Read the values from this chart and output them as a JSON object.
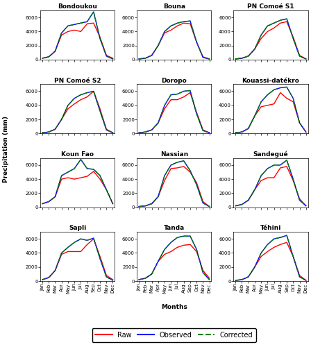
{
  "months": [
    "Jan",
    "Feb",
    "Mar",
    "Apr",
    "May",
    "Jun",
    "Jul",
    "Aug",
    "Sep",
    "Oct",
    "Nov",
    "Dec"
  ],
  "subplots": [
    {
      "title": "Bondoukou",
      "raw": [
        200,
        400,
        1200,
        3500,
        4000,
        4200,
        4000,
        5100,
        5200,
        3200,
        600,
        200
      ],
      "observed": [
        200,
        400,
        1200,
        3800,
        4800,
        5000,
        5200,
        5400,
        6800,
        3000,
        500,
        100
      ],
      "corrected": [
        200,
        400,
        1200,
        3800,
        4800,
        5000,
        5200,
        5400,
        6800,
        3000,
        500,
        100
      ]
    },
    {
      "title": "Bouna",
      "raw": [
        100,
        200,
        600,
        2000,
        3800,
        4200,
        4800,
        5200,
        5100,
        2500,
        400,
        100
      ],
      "observed": [
        100,
        200,
        600,
        2000,
        4000,
        4800,
        5200,
        5400,
        5500,
        2500,
        300,
        100
      ],
      "corrected": [
        100,
        200,
        600,
        2000,
        4000,
        4800,
        5200,
        5400,
        5500,
        2500,
        300,
        100
      ]
    },
    {
      "title": "PN Comoé S1",
      "raw": [
        100,
        200,
        500,
        1500,
        3000,
        4000,
        4500,
        5200,
        5400,
        3200,
        600,
        100
      ],
      "observed": [
        100,
        200,
        500,
        1500,
        3500,
        4800,
        5200,
        5600,
        5800,
        3000,
        500,
        100
      ],
      "corrected": [
        100,
        200,
        500,
        1500,
        3500,
        4800,
        5200,
        5600,
        5800,
        3000,
        500,
        100
      ]
    },
    {
      "title": "PN Comoé S2",
      "raw": [
        100,
        200,
        600,
        2000,
        3500,
        4200,
        4800,
        5200,
        6000,
        3500,
        600,
        100
      ],
      "observed": [
        100,
        200,
        600,
        2000,
        4000,
        5000,
        5500,
        5800,
        6000,
        3200,
        500,
        100
      ],
      "corrected": [
        100,
        200,
        600,
        2000,
        4000,
        5000,
        5500,
        5800,
        6000,
        3200,
        500,
        100
      ]
    },
    {
      "title": "Doropo",
      "raw": [
        100,
        200,
        500,
        1500,
        3500,
        4800,
        4800,
        5200,
        5800,
        3000,
        500,
        100
      ],
      "observed": [
        100,
        200,
        500,
        1500,
        4000,
        5500,
        5600,
        6000,
        6100,
        2800,
        400,
        100
      ],
      "corrected": [
        100,
        200,
        500,
        1500,
        4000,
        5500,
        5600,
        6000,
        6100,
        2800,
        400,
        100
      ]
    },
    {
      "title": "Kouassi-datékro",
      "raw": [
        100,
        200,
        700,
        2500,
        3800,
        4000,
        4200,
        5800,
        5000,
        4500,
        1500,
        200
      ],
      "observed": [
        100,
        200,
        700,
        2500,
        4500,
        5500,
        6200,
        6500,
        6600,
        5000,
        1500,
        200
      ],
      "corrected": [
        100,
        200,
        700,
        2500,
        4500,
        5500,
        6200,
        6500,
        6600,
        5000,
        1500,
        200
      ]
    },
    {
      "title": "Koun Fao",
      "raw": [
        500,
        800,
        1500,
        4000,
        4200,
        4000,
        4200,
        4400,
        5100,
        4000,
        2500,
        500
      ],
      "observed": [
        500,
        800,
        1500,
        4500,
        5000,
        5500,
        6800,
        5500,
        5400,
        4500,
        2500,
        500
      ],
      "corrected": [
        500,
        800,
        1500,
        4500,
        5000,
        5500,
        6800,
        5500,
        5400,
        4500,
        2500,
        500
      ]
    },
    {
      "title": "Nassian",
      "raw": [
        100,
        200,
        500,
        1500,
        3800,
        5500,
        5600,
        5800,
        5000,
        3500,
        800,
        100
      ],
      "observed": [
        100,
        200,
        500,
        1500,
        4500,
        6000,
        6400,
        6600,
        5200,
        3200,
        600,
        100
      ],
      "corrected": [
        100,
        200,
        500,
        1500,
        4500,
        6000,
        6400,
        6600,
        5200,
        3200,
        600,
        100
      ]
    },
    {
      "title": "Sandegué",
      "raw": [
        200,
        400,
        1000,
        2500,
        3800,
        4200,
        4200,
        5600,
        5800,
        3800,
        1200,
        200
      ],
      "observed": [
        200,
        400,
        1000,
        2500,
        4500,
        5500,
        6000,
        6000,
        6700,
        4000,
        1000,
        200
      ],
      "corrected": [
        200,
        400,
        1000,
        2500,
        4500,
        5500,
        6000,
        6000,
        6700,
        4000,
        1000,
        200
      ]
    },
    {
      "title": "Sapli",
      "raw": [
        200,
        500,
        1500,
        3800,
        4200,
        4200,
        4200,
        5200,
        6000,
        3500,
        800,
        200
      ],
      "observed": [
        200,
        500,
        1500,
        4000,
        4800,
        5500,
        6000,
        5800,
        6100,
        3200,
        600,
        100
      ],
      "corrected": [
        200,
        500,
        1500,
        4000,
        4800,
        5500,
        6000,
        5800,
        6100,
        3200,
        600,
        100
      ]
    },
    {
      "title": "Tanda",
      "raw": [
        200,
        400,
        1000,
        2800,
        3800,
        4200,
        4800,
        5100,
        5200,
        4200,
        1500,
        400
      ],
      "observed": [
        200,
        400,
        1000,
        2800,
        4500,
        5500,
        6200,
        6400,
        6400,
        4500,
        1200,
        200
      ],
      "corrected": [
        200,
        400,
        1000,
        2800,
        4500,
        5500,
        6200,
        6400,
        6400,
        4500,
        1200,
        200
      ]
    },
    {
      "title": "Téhini",
      "raw": [
        100,
        200,
        600,
        2000,
        3500,
        4200,
        4800,
        5200,
        5500,
        3500,
        800,
        100
      ],
      "observed": [
        100,
        200,
        600,
        2000,
        4000,
        5200,
        6000,
        6200,
        6500,
        3500,
        600,
        100
      ],
      "corrected": [
        100,
        200,
        600,
        2000,
        4000,
        5200,
        6000,
        6200,
        6500,
        3500,
        600,
        100
      ]
    }
  ],
  "raw_color": "#FF0000",
  "observed_color": "#0000FF",
  "corrected_color": "#008000",
  "corrected_linestyle": "--",
  "fig_ylabel": "Precipitation (mm)",
  "fig_xlabel": "Months",
  "ylim": [
    0,
    7000
  ],
  "yticks": [
    0,
    2000,
    4000,
    6000
  ],
  "linewidth": 1.0,
  "title_fontsize": 6.5,
  "tick_fontsize": 5.0,
  "label_fontsize": 6.5,
  "legend_fontsize": 7.0,
  "background_color": "#FFFFFF"
}
